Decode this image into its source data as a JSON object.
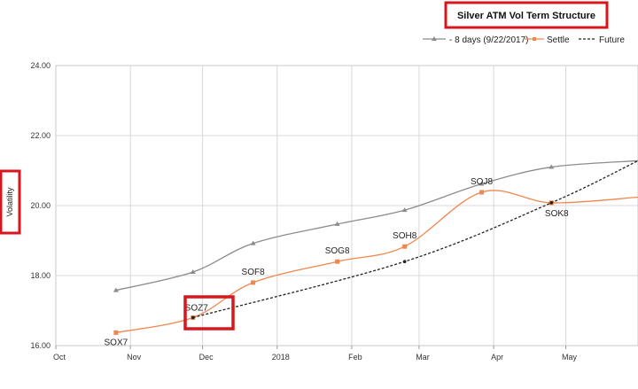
{
  "chart_data": {
    "type": "line",
    "title": "Silver ATM Vol Term Structure",
    "ylabel": "Volatility",
    "xlabel": "",
    "ylim": [
      16,
      24
    ],
    "yticks": [
      "16.00",
      "18.00",
      "20.00",
      "22.00",
      "24.00"
    ],
    "grid": true,
    "legend_position": "top-right",
    "x_axis": {
      "type": "date",
      "range": [
        "2017-10-01",
        "2018-05-31"
      ],
      "ticks": [
        {
          "label": "Oct",
          "date": "2017-10-01"
        },
        {
          "label": "Nov",
          "date": "2017-11-01"
        },
        {
          "label": "Dec",
          "date": "2017-12-01"
        },
        {
          "label": "2018",
          "date": "2018-01-01"
        },
        {
          "label": "Feb",
          "date": "2018-02-01"
        },
        {
          "label": "Mar",
          "date": "2018-03-01"
        },
        {
          "label": "Apr",
          "date": "2018-04-01"
        },
        {
          "label": "May",
          "date": "2018-05-01"
        }
      ]
    },
    "series": [
      {
        "name": "- 8 days (9/22/2017)",
        "color": "#8c8c8c",
        "marker": "triangle",
        "style": "solid",
        "points": [
          {
            "x": "2017-10-26",
            "y": 17.58
          },
          {
            "x": "2017-11-27",
            "y": 18.1
          },
          {
            "x": "2017-12-22",
            "y": 18.92
          },
          {
            "x": "2018-01-26",
            "y": 19.47
          },
          {
            "x": "2018-02-23",
            "y": 19.87
          },
          {
            "x": "2018-03-27",
            "y": 20.62
          },
          {
            "x": "2018-04-25",
            "y": 21.1
          },
          {
            "x": "2018-05-31",
            "y": 21.28
          }
        ]
      },
      {
        "name": "Settle",
        "color": "#f0874d",
        "marker": "square",
        "style": "solid",
        "points": [
          {
            "x": "2017-10-26",
            "y": 16.37,
            "label": "SOX7"
          },
          {
            "x": "2017-11-27",
            "y": 16.8,
            "label": "SOZ7"
          },
          {
            "x": "2017-12-22",
            "y": 17.8,
            "label": "SOF8"
          },
          {
            "x": "2018-01-26",
            "y": 18.4,
            "label": "SOG8"
          },
          {
            "x": "2018-02-23",
            "y": 18.83,
            "label": "SOH8"
          },
          {
            "x": "2018-03-27",
            "y": 20.38,
            "label": "SOJ8"
          },
          {
            "x": "2018-04-25",
            "y": 20.08,
            "label": "SOK8"
          },
          {
            "x": "2018-05-31",
            "y": 20.24
          }
        ]
      },
      {
        "name": "Future",
        "color": "#222222",
        "marker": "dot",
        "style": "dashed",
        "points": [
          {
            "x": "2017-11-27",
            "y": 16.8
          },
          {
            "x": "2018-02-23",
            "y": 18.4
          },
          {
            "x": "2018-04-25",
            "y": 20.08
          },
          {
            "x": "2018-05-31",
            "y": 21.28
          }
        ]
      }
    ]
  }
}
